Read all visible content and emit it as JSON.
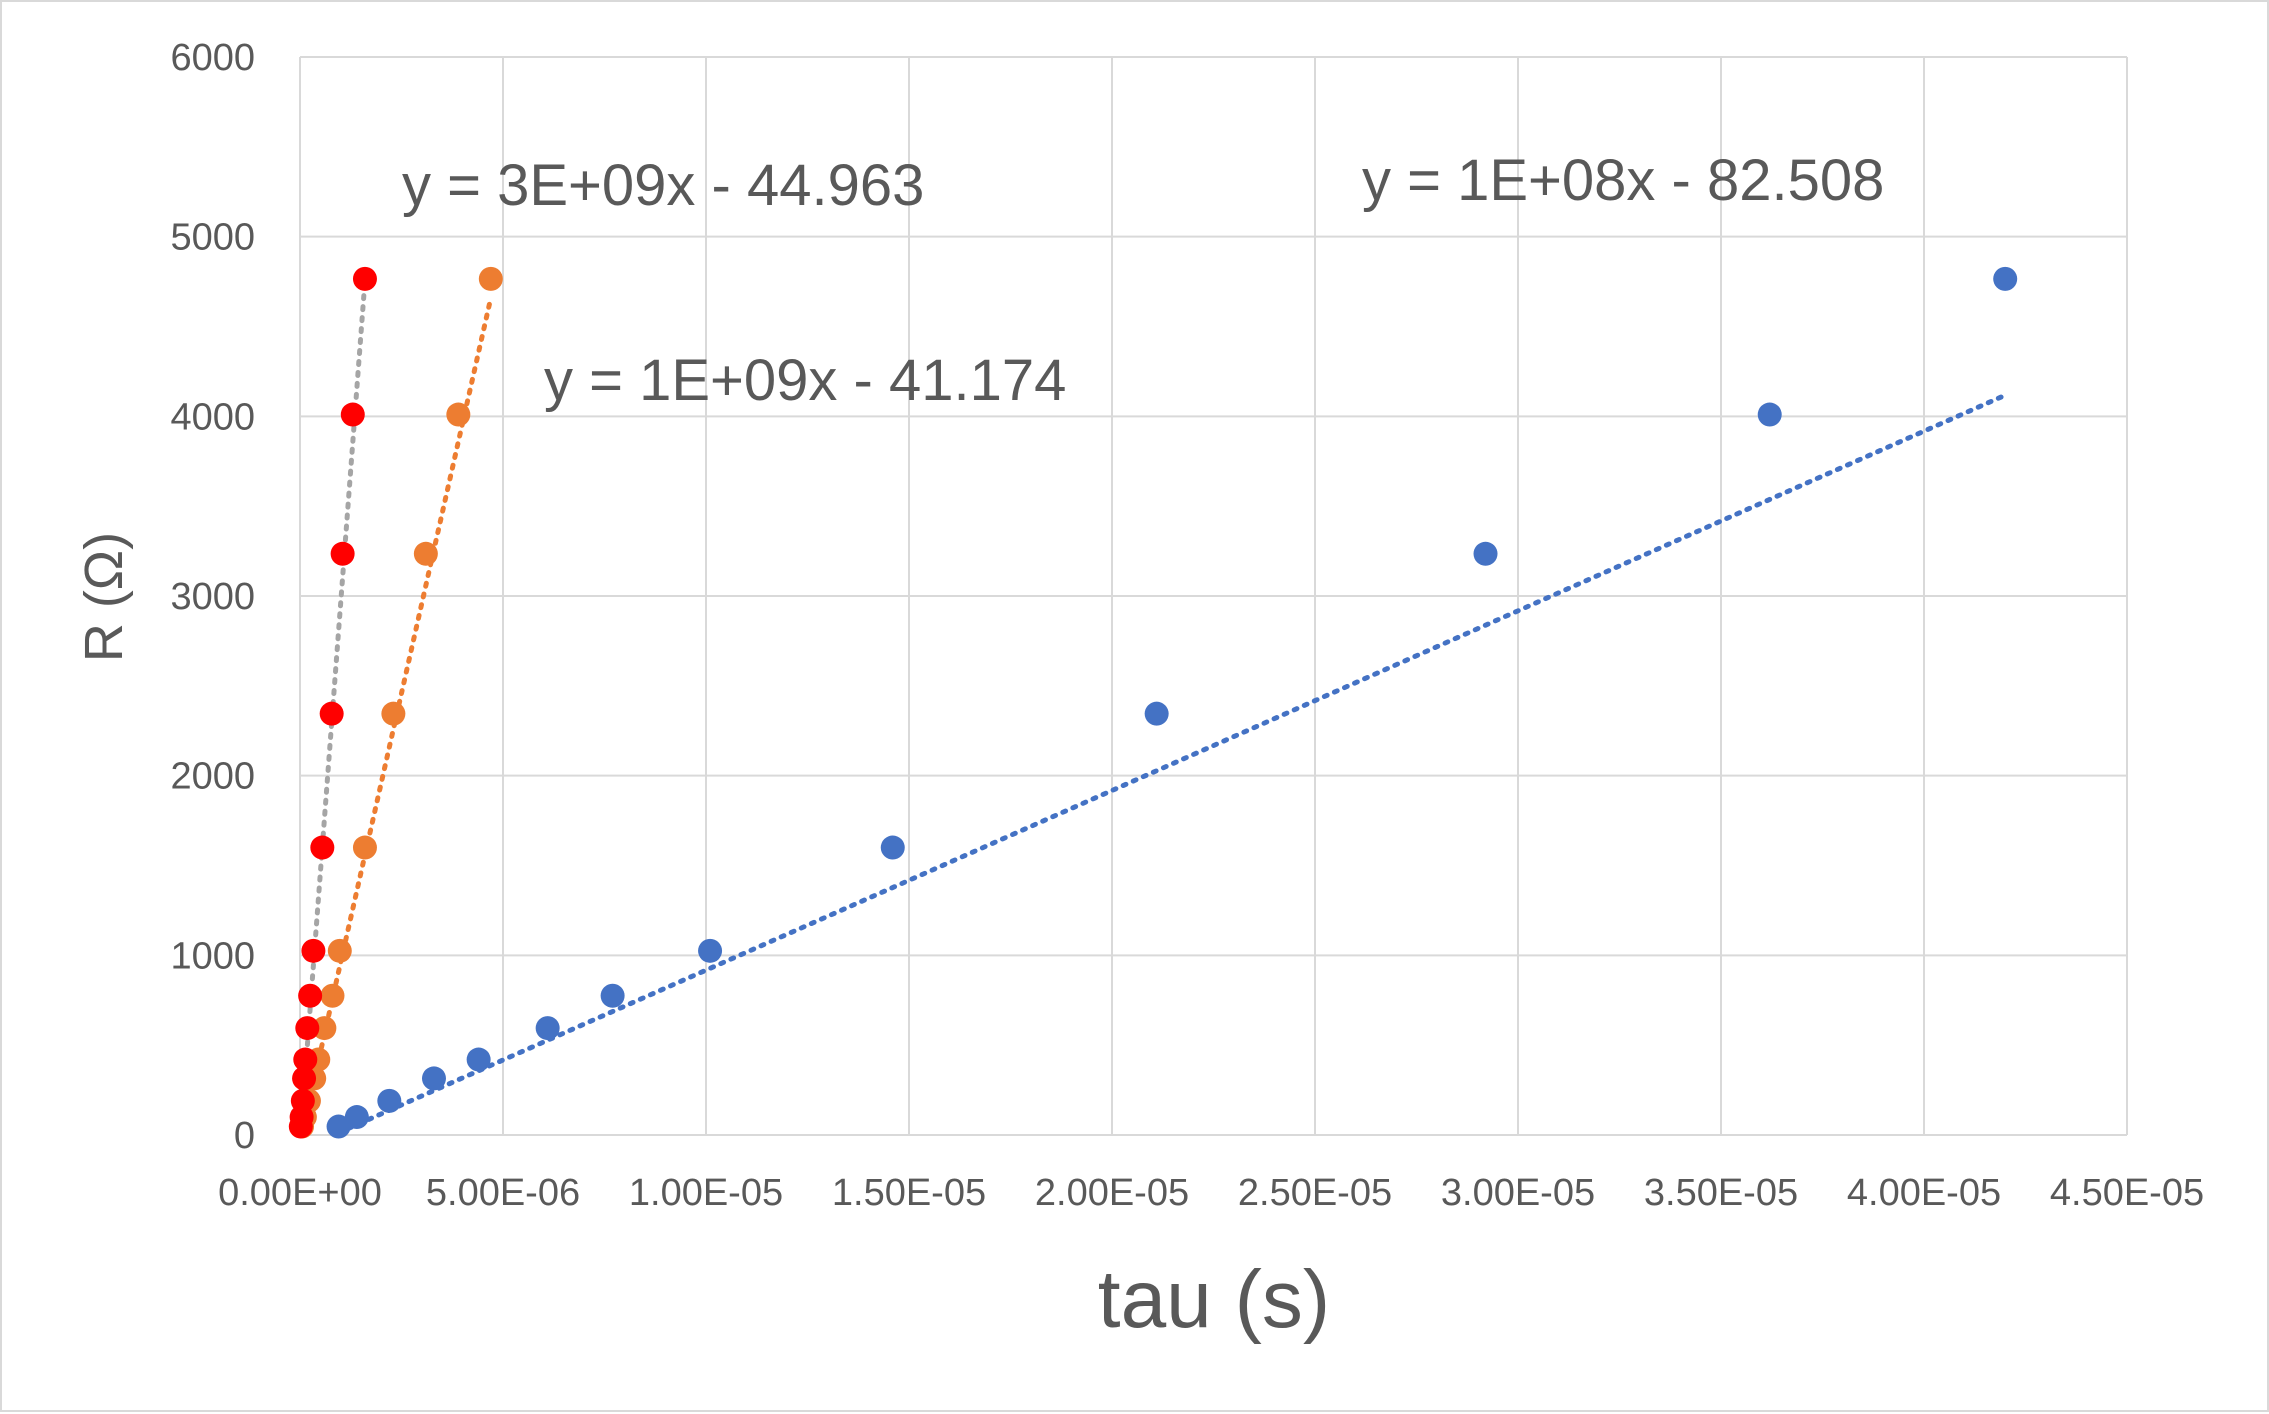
{
  "chart_data": {
    "type": "scatter",
    "title": "",
    "xlabel": "tau (s)",
    "ylabel": "R (Ω)",
    "xlim": [
      0,
      4.5e-05
    ],
    "ylim": [
      0,
      6000
    ],
    "grid": true,
    "x_ticks": [
      "0.00E+00",
      "5.00E-06",
      "1.00E-05",
      "1.50E-05",
      "2.00E-05",
      "2.50E-05",
      "3.00E-05",
      "3.50E-05",
      "4.00E-05",
      "4.50E-05"
    ],
    "y_ticks": [
      "0",
      "1000",
      "2000",
      "3000",
      "4000",
      "5000",
      "6000"
    ],
    "series": [
      {
        "color": "#4472C4",
        "trendline_color": "#4472C4",
        "trendline": {
          "slope": 100000000,
          "intercept": -82.508
        },
        "equation": "y = 1E+08x - 82.508",
        "x": [
          9.5e-07,
          1.4e-06,
          2.2e-06,
          3.3e-06,
          4.4e-06,
          6.1e-06,
          7.7e-06,
          1.01e-05,
          1.46e-05,
          2.11e-05,
          2.92e-05,
          3.62e-05,
          4.2e-05
        ],
        "y": [
          47,
          100,
          190,
          315,
          420,
          595,
          775,
          1025,
          1600,
          2345,
          3235,
          4010,
          4765
        ]
      },
      {
        "color": "#ED7D31",
        "trendline_color": "#ED7D31",
        "trendline": {
          "slope": 1000000000,
          "intercept": -41.174
        },
        "equation": "y = 1E+09x - 41.174",
        "x": [
          5e-08,
          1.2e-07,
          2.2e-07,
          3.5e-07,
          4.5e-07,
          6e-07,
          8e-07,
          9.8e-07,
          1.6e-06,
          2.3e-06,
          3.1e-06,
          3.9e-06,
          4.7e-06
        ],
        "y": [
          47,
          100,
          190,
          315,
          420,
          595,
          775,
          1025,
          1600,
          2345,
          3235,
          4010,
          4765
        ]
      },
      {
        "color": "#FF0000",
        "trendline_color": "#A5A5A5",
        "trendline": {
          "slope": 3000000000,
          "intercept": -44.963
        },
        "equation": "y = 3E+09x - 44.963",
        "x": [
          2e-08,
          4e-08,
          7e-08,
          1e-07,
          1.3e-07,
          1.8e-07,
          2.5e-07,
          3.3e-07,
          5.5e-07,
          7.8e-07,
          1.05e-06,
          1.3e-06,
          1.6e-06
        ],
        "y": [
          47,
          100,
          190,
          315,
          420,
          595,
          775,
          1025,
          1600,
          2345,
          3235,
          4010,
          4765
        ]
      }
    ]
  }
}
